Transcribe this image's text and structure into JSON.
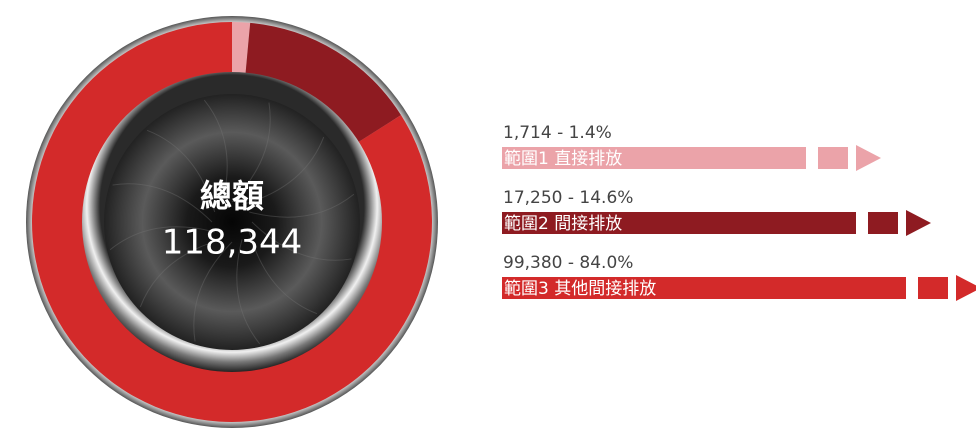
{
  "chart_data": {
    "type": "donut",
    "center_title": "總額",
    "center_value_label": "118,344",
    "categories": [
      "範圍1 直接排放",
      "範圍2 間接排放",
      "範圍3 其他間接排放"
    ],
    "values": [
      1714,
      17250,
      99380
    ],
    "value_labels": [
      "1,714 - 1.4%",
      "17,250 - 14.6%",
      "99,380 - 84.0%"
    ],
    "colors": [
      "#eba3a9",
      "#8e1b21",
      "#d32a2a"
    ]
  }
}
